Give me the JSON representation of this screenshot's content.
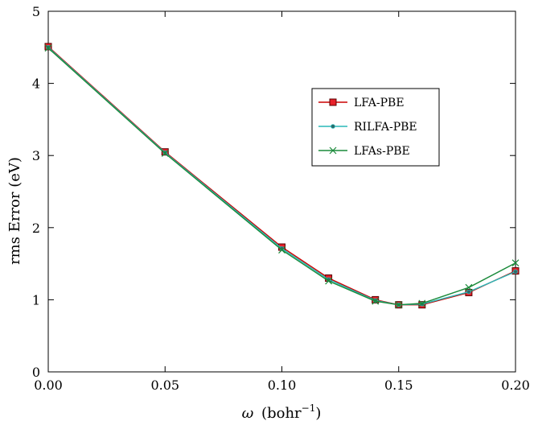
{
  "chart_data": {
    "type": "line",
    "title": "",
    "xlabel_symbol": "ω",
    "xlabel_unit_base": "bohr",
    "xlabel_unit_exp": "−1",
    "ylabel": "rms Error (eV)",
    "xlim": [
      0.0,
      0.2
    ],
    "ylim": [
      0,
      5
    ],
    "xticks": [
      0.0,
      0.05,
      0.1,
      0.15,
      0.2
    ],
    "xtick_labels": [
      "0.00",
      "0.05",
      "0.10",
      "0.15",
      "0.20"
    ],
    "yticks": [
      0,
      1,
      2,
      3,
      4,
      5
    ],
    "ytick_labels": [
      "0",
      "1",
      "2",
      "3",
      "4",
      "5"
    ],
    "grid": false,
    "legend_position": "upper-right-center",
    "series": [
      {
        "name": "LFA-PBE",
        "color": "#cc0000",
        "marker": "square",
        "marker_fill": "#e8202a",
        "x": [
          0.0,
          0.05,
          0.1,
          0.12,
          0.14,
          0.15,
          0.16,
          0.18,
          0.2
        ],
        "y": [
          4.51,
          3.05,
          1.73,
          1.3,
          1.0,
          0.93,
          0.93,
          1.1,
          1.4
        ]
      },
      {
        "name": "RILFA-PBE",
        "color": "#2ab8b8",
        "marker": "circle",
        "marker_fill": "#2a6a6a",
        "x": [
          0.0,
          0.05,
          0.1,
          0.12,
          0.14,
          0.15,
          0.16,
          0.18,
          0.2
        ],
        "y": [
          4.5,
          3.04,
          1.71,
          1.28,
          0.99,
          0.93,
          0.94,
          1.11,
          1.39
        ]
      },
      {
        "name": "LFAs-PBE",
        "color": "#1a8a3a",
        "marker": "x",
        "marker_fill": "none",
        "x": [
          0.0,
          0.05,
          0.1,
          0.12,
          0.14,
          0.15,
          0.16,
          0.18,
          0.2
        ],
        "y": [
          4.49,
          3.03,
          1.69,
          1.26,
          0.98,
          0.93,
          0.95,
          1.17,
          1.51
        ]
      }
    ]
  }
}
